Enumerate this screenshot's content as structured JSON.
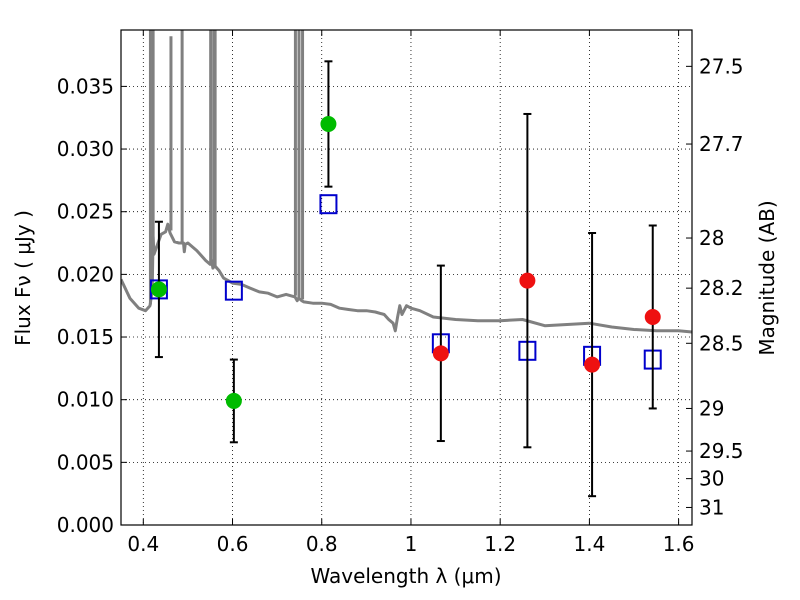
{
  "chart_data": {
    "type": "scatter",
    "title": "",
    "xlabel": "Wavelength  λ (μm)",
    "ylabel_left": "Flux  Fν  ( μJy )",
    "ylabel_right": "Magnitude (AB)",
    "xlim": [
      0.35,
      1.63
    ],
    "ylim": [
      0.0,
      0.0395
    ],
    "grid": true,
    "x_ticks": [
      {
        "value": 0.4,
        "label": "0.4"
      },
      {
        "value": 0.6,
        "label": "0.6"
      },
      {
        "value": 0.8,
        "label": "0.8"
      },
      {
        "value": 1.0,
        "label": "1"
      },
      {
        "value": 1.2,
        "label": "1.2"
      },
      {
        "value": 1.4,
        "label": "1.4"
      },
      {
        "value": 1.6,
        "label": "1.6"
      }
    ],
    "y_ticks": [
      {
        "value": 0.0,
        "label": "0.000"
      },
      {
        "value": 0.005,
        "label": "0.005"
      },
      {
        "value": 0.01,
        "label": "0.010"
      },
      {
        "value": 0.015,
        "label": "0.015"
      },
      {
        "value": 0.02,
        "label": "0.020"
      },
      {
        "value": 0.025,
        "label": "0.025"
      },
      {
        "value": 0.03,
        "label": "0.030"
      },
      {
        "value": 0.035,
        "label": "0.035"
      }
    ],
    "right_ticks": [
      {
        "flux": 0.0366,
        "label": "27.5"
      },
      {
        "flux": 0.0304,
        "label": "27.7"
      },
      {
        "flux": 0.0229,
        "label": "28"
      },
      {
        "flux": 0.0189,
        "label": "28.2"
      },
      {
        "flux": 0.0145,
        "label": "28.5"
      },
      {
        "flux": 0.0093,
        "label": "29"
      },
      {
        "flux": 0.0059,
        "label": "29.5"
      },
      {
        "flux": 0.0037,
        "label": "30"
      },
      {
        "flux": 0.0014,
        "label": "31"
      }
    ],
    "series": [
      {
        "name": "model-spectrum",
        "kind": "line",
        "color": "#808080",
        "x": [
          0.35,
          0.37,
          0.39,
          0.405,
          0.415,
          0.42,
          0.422,
          0.424,
          0.43,
          0.44,
          0.45,
          0.455,
          0.46,
          0.47,
          0.48,
          0.49,
          0.492,
          0.494,
          0.5,
          0.52,
          0.54,
          0.55,
          0.553,
          0.556,
          0.56,
          0.565,
          0.57,
          0.58,
          0.6,
          0.62,
          0.64,
          0.66,
          0.68,
          0.7,
          0.72,
          0.74,
          0.745,
          0.748,
          0.752,
          0.755,
          0.76,
          0.78,
          0.8,
          0.82,
          0.84,
          0.86,
          0.88,
          0.9,
          0.92,
          0.94,
          0.95,
          0.96,
          0.965,
          0.97,
          0.975,
          0.98,
          0.99,
          1.0,
          1.02,
          1.05,
          1.1,
          1.15,
          1.2,
          1.25,
          1.3,
          1.35,
          1.4,
          1.45,
          1.5,
          1.55,
          1.6,
          1.63
        ],
        "y": [
          0.0196,
          0.0181,
          0.0173,
          0.0171,
          0.0175,
          0.0187,
          0.023,
          0.0216,
          0.0222,
          0.0232,
          0.0234,
          0.024,
          0.0233,
          0.0226,
          0.0225,
          0.0225,
          0.0218,
          0.0224,
          0.0225,
          0.0219,
          0.0211,
          0.0208,
          0.0211,
          0.0205,
          0.0207,
          0.0205,
          0.0203,
          0.0197,
          0.0193,
          0.0192,
          0.0189,
          0.0186,
          0.0185,
          0.0182,
          0.0184,
          0.0182,
          0.0179,
          0.0181,
          0.018,
          0.0179,
          0.0178,
          0.0177,
          0.0177,
          0.0176,
          0.0173,
          0.0172,
          0.0171,
          0.0171,
          0.017,
          0.0168,
          0.0164,
          0.0161,
          0.0155,
          0.0166,
          0.0175,
          0.0168,
          0.0175,
          0.0173,
          0.0171,
          0.0166,
          0.0164,
          0.0163,
          0.0163,
          0.0164,
          0.0159,
          0.016,
          0.0161,
          0.0158,
          0.0156,
          0.0155,
          0.0155,
          0.0154
        ]
      },
      {
        "name": "model-spectrum-emission-lines",
        "kind": "spikes",
        "color": "#808080",
        "x": [
          0.416,
          0.422,
          0.462,
          0.487,
          0.551,
          0.558,
          0.561,
          0.741,
          0.749,
          0.757
        ],
        "y_base": [
          0.0176,
          0.0215,
          0.0235,
          0.0224,
          0.021,
          0.0205,
          0.0207,
          0.0183,
          0.0181,
          0.018
        ],
        "y_top": [
          0.04,
          0.04,
          0.039,
          0.04,
          0.04,
          0.04,
          0.04,
          0.04,
          0.04,
          0.04
        ]
      },
      {
        "name": "model-photometry",
        "kind": "open-square",
        "color": "#0000cc",
        "x": [
          0.435,
          0.603,
          0.815,
          1.067,
          1.261,
          1.406,
          1.542
        ],
        "y": [
          0.0188,
          0.0187,
          0.0256,
          0.0145,
          0.0139,
          0.0135,
          0.0132
        ]
      },
      {
        "name": "observed-detections-green",
        "kind": "filled-circle",
        "color": "#00bb00",
        "x": [
          0.435,
          0.603,
          0.815
        ],
        "y": [
          0.0188,
          0.0099,
          0.032
        ],
        "err_lo": [
          0.0054,
          0.0033,
          0.005
        ],
        "err_hi": [
          0.0054,
          0.0033,
          0.005
        ]
      },
      {
        "name": "observed-detections-red",
        "kind": "filled-circle",
        "color": "#ee1111",
        "x": [
          1.067,
          1.261,
          1.406,
          1.542
        ],
        "y": [
          0.0137,
          0.0195,
          0.0128,
          0.0166
        ],
        "err_lo": [
          0.007,
          0.0133,
          0.0105,
          0.0073
        ],
        "err_hi": [
          0.007,
          0.0133,
          0.0105,
          0.0073
        ]
      }
    ]
  }
}
